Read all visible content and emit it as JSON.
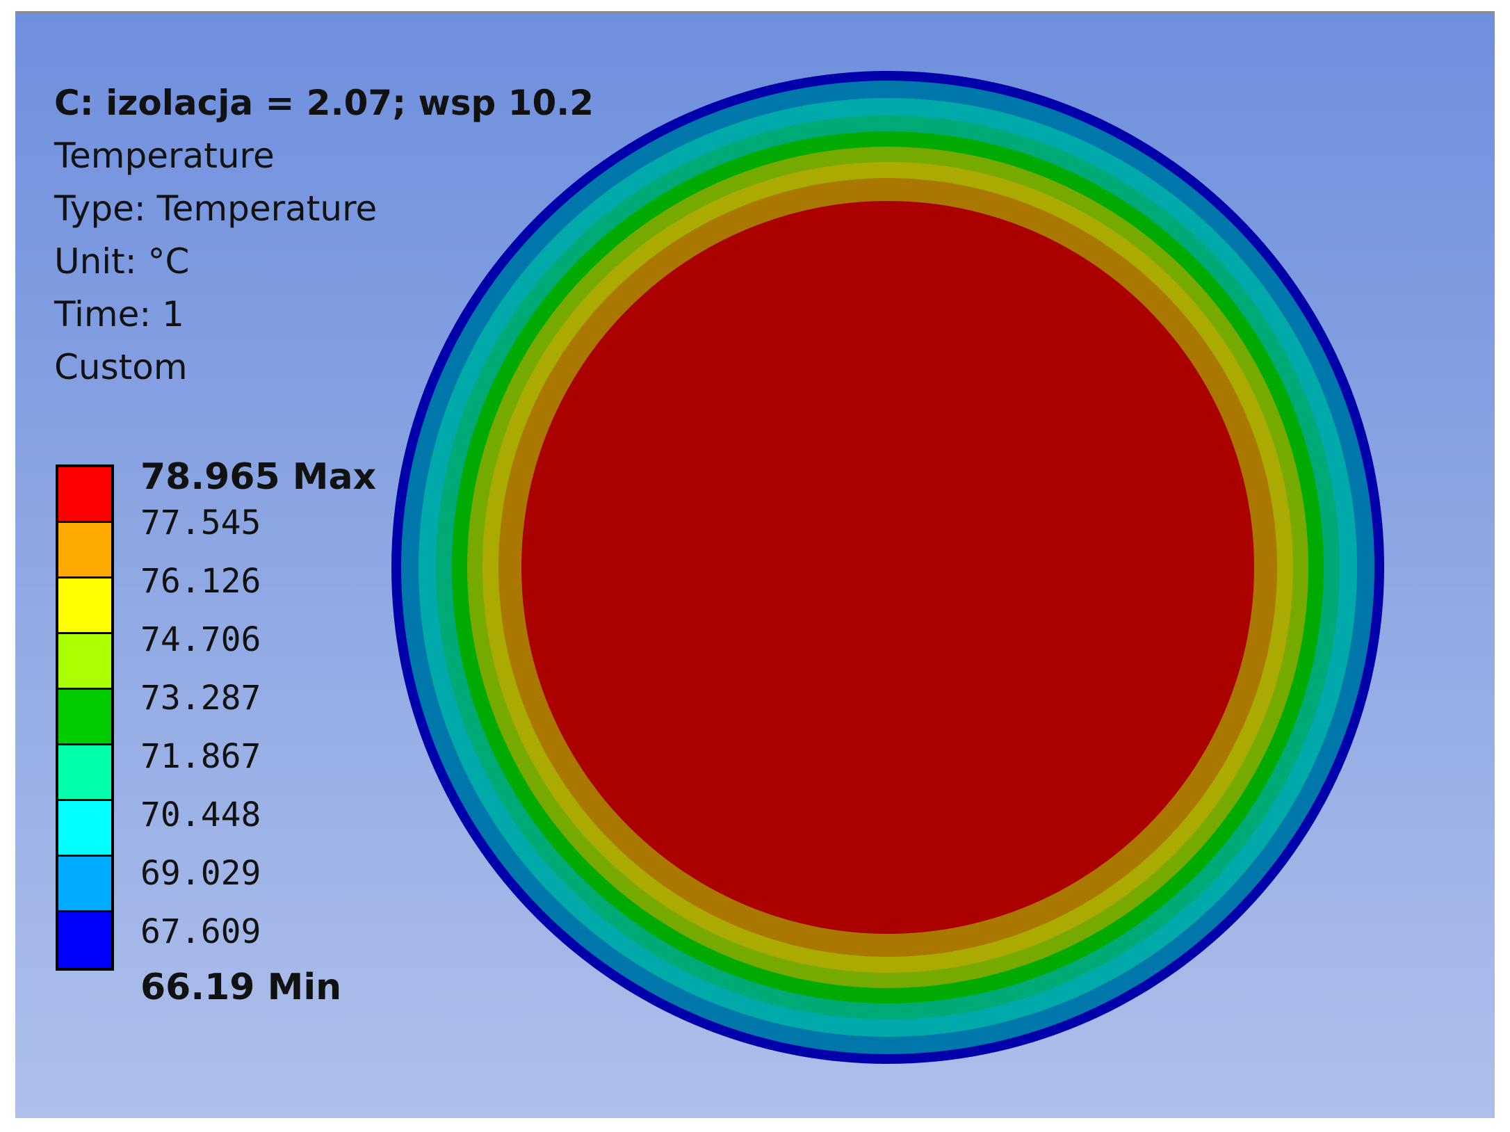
{
  "window": {
    "title": "C: izolacja = 2.07; wsp 10.2"
  },
  "result": {
    "name": "Temperature",
    "type_line": "Type: Temperature",
    "unit_line": "Unit: °C",
    "time_line": "Time: 1",
    "mode_line": "Custom"
  },
  "legend": {
    "max_label": "78.965 Max",
    "min_label": "66.19 Min",
    "levels": [
      "77.545",
      "76.126",
      "74.706",
      "73.287",
      "71.867",
      "70.448",
      "69.029",
      "67.609"
    ],
    "colors": [
      "#ff0000",
      "#ffaa00",
      "#ffff00",
      "#aaff00",
      "#00cc00",
      "#00ffaa",
      "#00ffff",
      "#00aaff",
      "#0000ff"
    ]
  },
  "contour": {
    "band_colors": [
      "#0000aa",
      "#0077aa",
      "#00aaaa",
      "#00aa77",
      "#00aa00",
      "#77aa00",
      "#aaaa00",
      "#aa7700",
      "#aa0000"
    ]
  }
}
